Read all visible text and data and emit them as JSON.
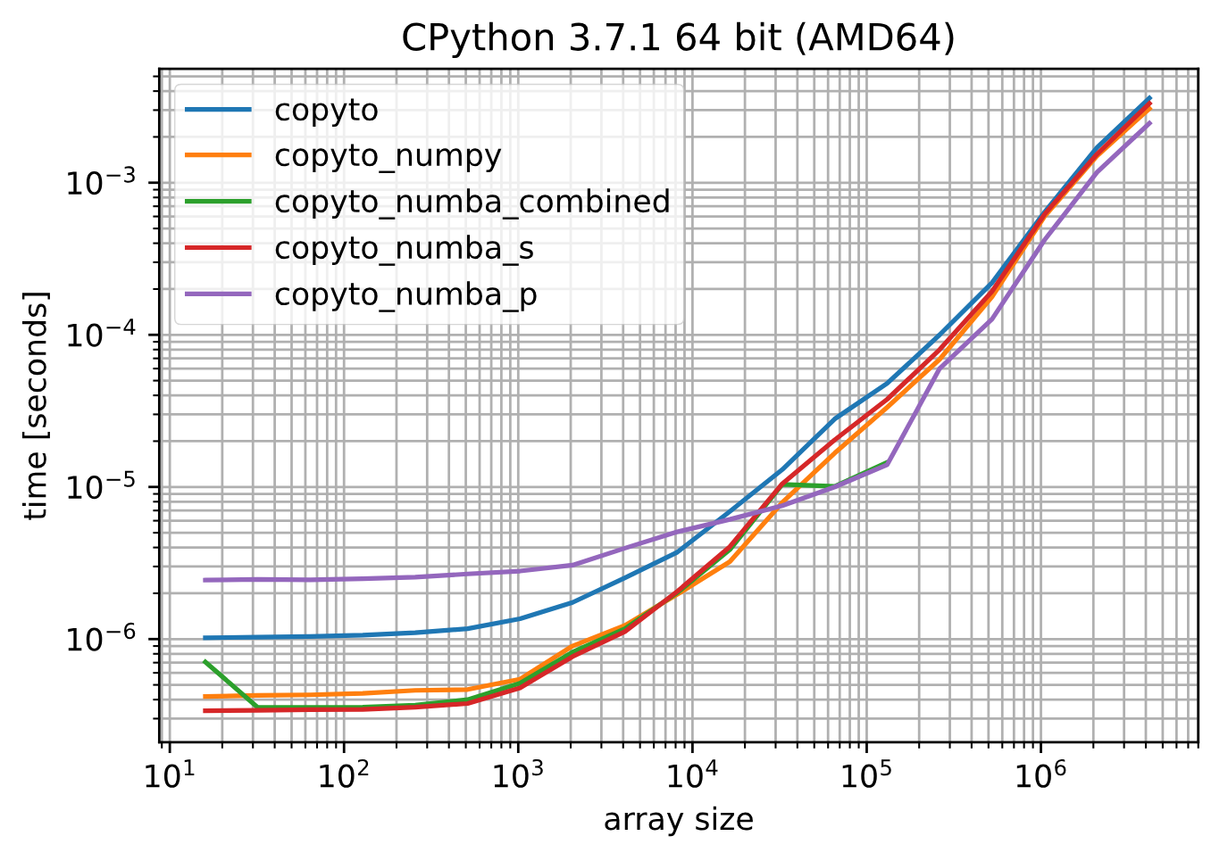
{
  "chart_data": {
    "type": "line",
    "title": "CPython 3.7.1 64 bit (AMD64)",
    "xlabel": "array size",
    "ylabel": "time [seconds]",
    "x": [
      16,
      32,
      64,
      128,
      256,
      512,
      1024,
      2048,
      4096,
      8192,
      16384,
      32768,
      65536,
      131072,
      262144,
      524288,
      1048576,
      2097152,
      4194304
    ],
    "series": [
      {
        "name": "copyto",
        "color": "#1f77b4",
        "values": [
          1.02e-06,
          1.03e-06,
          1.04e-06,
          1.06e-06,
          1.1e-06,
          1.17e-06,
          1.36e-06,
          1.74e-06,
          2.53e-06,
          3.73e-06,
          6.9e-06,
          1.3e-05,
          2.8e-05,
          4.8e-05,
          0.0001,
          0.00022,
          0.00064,
          0.0017,
          0.0036
        ]
      },
      {
        "name": "copyto_numpy",
        "color": "#ff7f0e",
        "values": [
          4.2e-07,
          4.26e-07,
          4.3e-07,
          4.4e-07,
          4.6e-07,
          4.66e-07,
          5.45e-07,
          9e-07,
          1.23e-06,
          1.97e-06,
          3.23e-06,
          7.9e-06,
          1.67e-05,
          3.34e-05,
          6.9e-05,
          0.000178,
          0.0006,
          0.0015,
          0.00307
        ]
      },
      {
        "name": "copyto_numba_combined",
        "color": "#2ca02c",
        "values": [
          7.07e-07,
          3.55e-07,
          3.55e-07,
          3.57e-07,
          3.68e-07,
          4e-07,
          5.12e-07,
          8.2e-07,
          1.17e-06,
          2.02e-06,
          3.87e-06,
          1.04e-05,
          1.01e-05,
          1.45e-05,
          null,
          null,
          null,
          null,
          null
        ]
      },
      {
        "name": "copyto_numba_s",
        "color": "#d62728",
        "values": [
          3.38e-07,
          3.4e-07,
          3.44e-07,
          3.45e-07,
          3.57e-07,
          3.77e-07,
          4.78e-07,
          7.67e-07,
          1.12e-06,
          2.06e-06,
          4.05e-06,
          1.05e-05,
          2.04e-05,
          3.77e-05,
          8e-05,
          0.000193,
          0.00062,
          0.00154,
          0.00332
        ]
      },
      {
        "name": "copyto_numba_p",
        "color": "#9467bd",
        "values": [
          2.44e-06,
          2.47e-06,
          2.45e-06,
          2.49e-06,
          2.55e-06,
          2.68e-06,
          2.8e-06,
          3.06e-06,
          3.96e-06,
          5.07e-06,
          6.12e-06,
          7.53e-06,
          1e-05,
          1.4e-05,
          6e-05,
          0.000127,
          0.00042,
          0.00117,
          0.00246
        ]
      }
    ],
    "log": "xy",
    "grid": true,
    "legend": "top left",
    "xlim": [
      8.7,
      8000000.0
    ],
    "ylim": [
      2.1e-07,
      0.0056
    ],
    "xticks": [
      {
        "value": 10,
        "label": "10$^{1}$"
      },
      {
        "value": 100,
        "label": "10$^{2}$"
      },
      {
        "value": 1000,
        "label": "10$^{3}$"
      },
      {
        "value": 10000,
        "label": "10$^{4}$"
      },
      {
        "value": 100000,
        "label": "10$^{5}$"
      },
      {
        "value": 1000000,
        "label": "10$^{6}$"
      }
    ],
    "yticks": [
      {
        "value": 1e-06,
        "label": "10$^{−6}$"
      },
      {
        "value": 1e-05,
        "label": "10$^{−5}$"
      },
      {
        "value": 0.0001,
        "label": "10$^{−4}$"
      },
      {
        "value": 0.001,
        "label": "10$^{−3}$"
      }
    ]
  }
}
